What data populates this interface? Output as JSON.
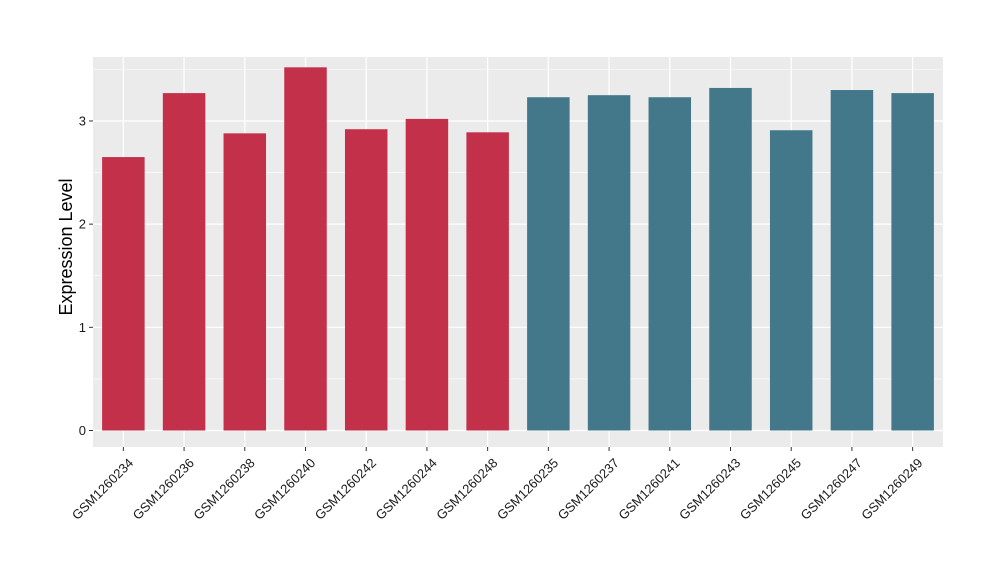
{
  "chart_data": {
    "type": "bar",
    "categories": [
      "GSM1260234",
      "GSM1260236",
      "GSM1260238",
      "GSM1260240",
      "GSM1260242",
      "GSM1260244",
      "GSM1260248",
      "GSM1260235",
      "GSM1260237",
      "GSM1260241",
      "GSM1260243",
      "GSM1260245",
      "GSM1260247",
      "GSM1260249"
    ],
    "values": [
      2.65,
      3.27,
      2.88,
      3.52,
      2.92,
      3.02,
      2.89,
      3.23,
      3.25,
      3.23,
      3.32,
      2.91,
      3.3,
      3.27
    ],
    "bar_colors": [
      "#c3304a",
      "#c3304a",
      "#c3304a",
      "#c3304a",
      "#c3304a",
      "#c3304a",
      "#c3304a",
      "#42788a",
      "#42788a",
      "#42788a",
      "#42788a",
      "#42788a",
      "#42788a",
      "#42788a"
    ],
    "title": "",
    "xlabel": "",
    "ylabel": "Expression Level",
    "ylim": [
      -0.16,
      3.62
    ],
    "yticks": [
      0,
      1,
      2,
      3
    ],
    "ytick_labels": [
      "0",
      "1",
      "2",
      "3"
    ],
    "grid": true,
    "panel_background": "#ebebeb",
    "grid_color": "#ffffff",
    "legend": "none"
  }
}
